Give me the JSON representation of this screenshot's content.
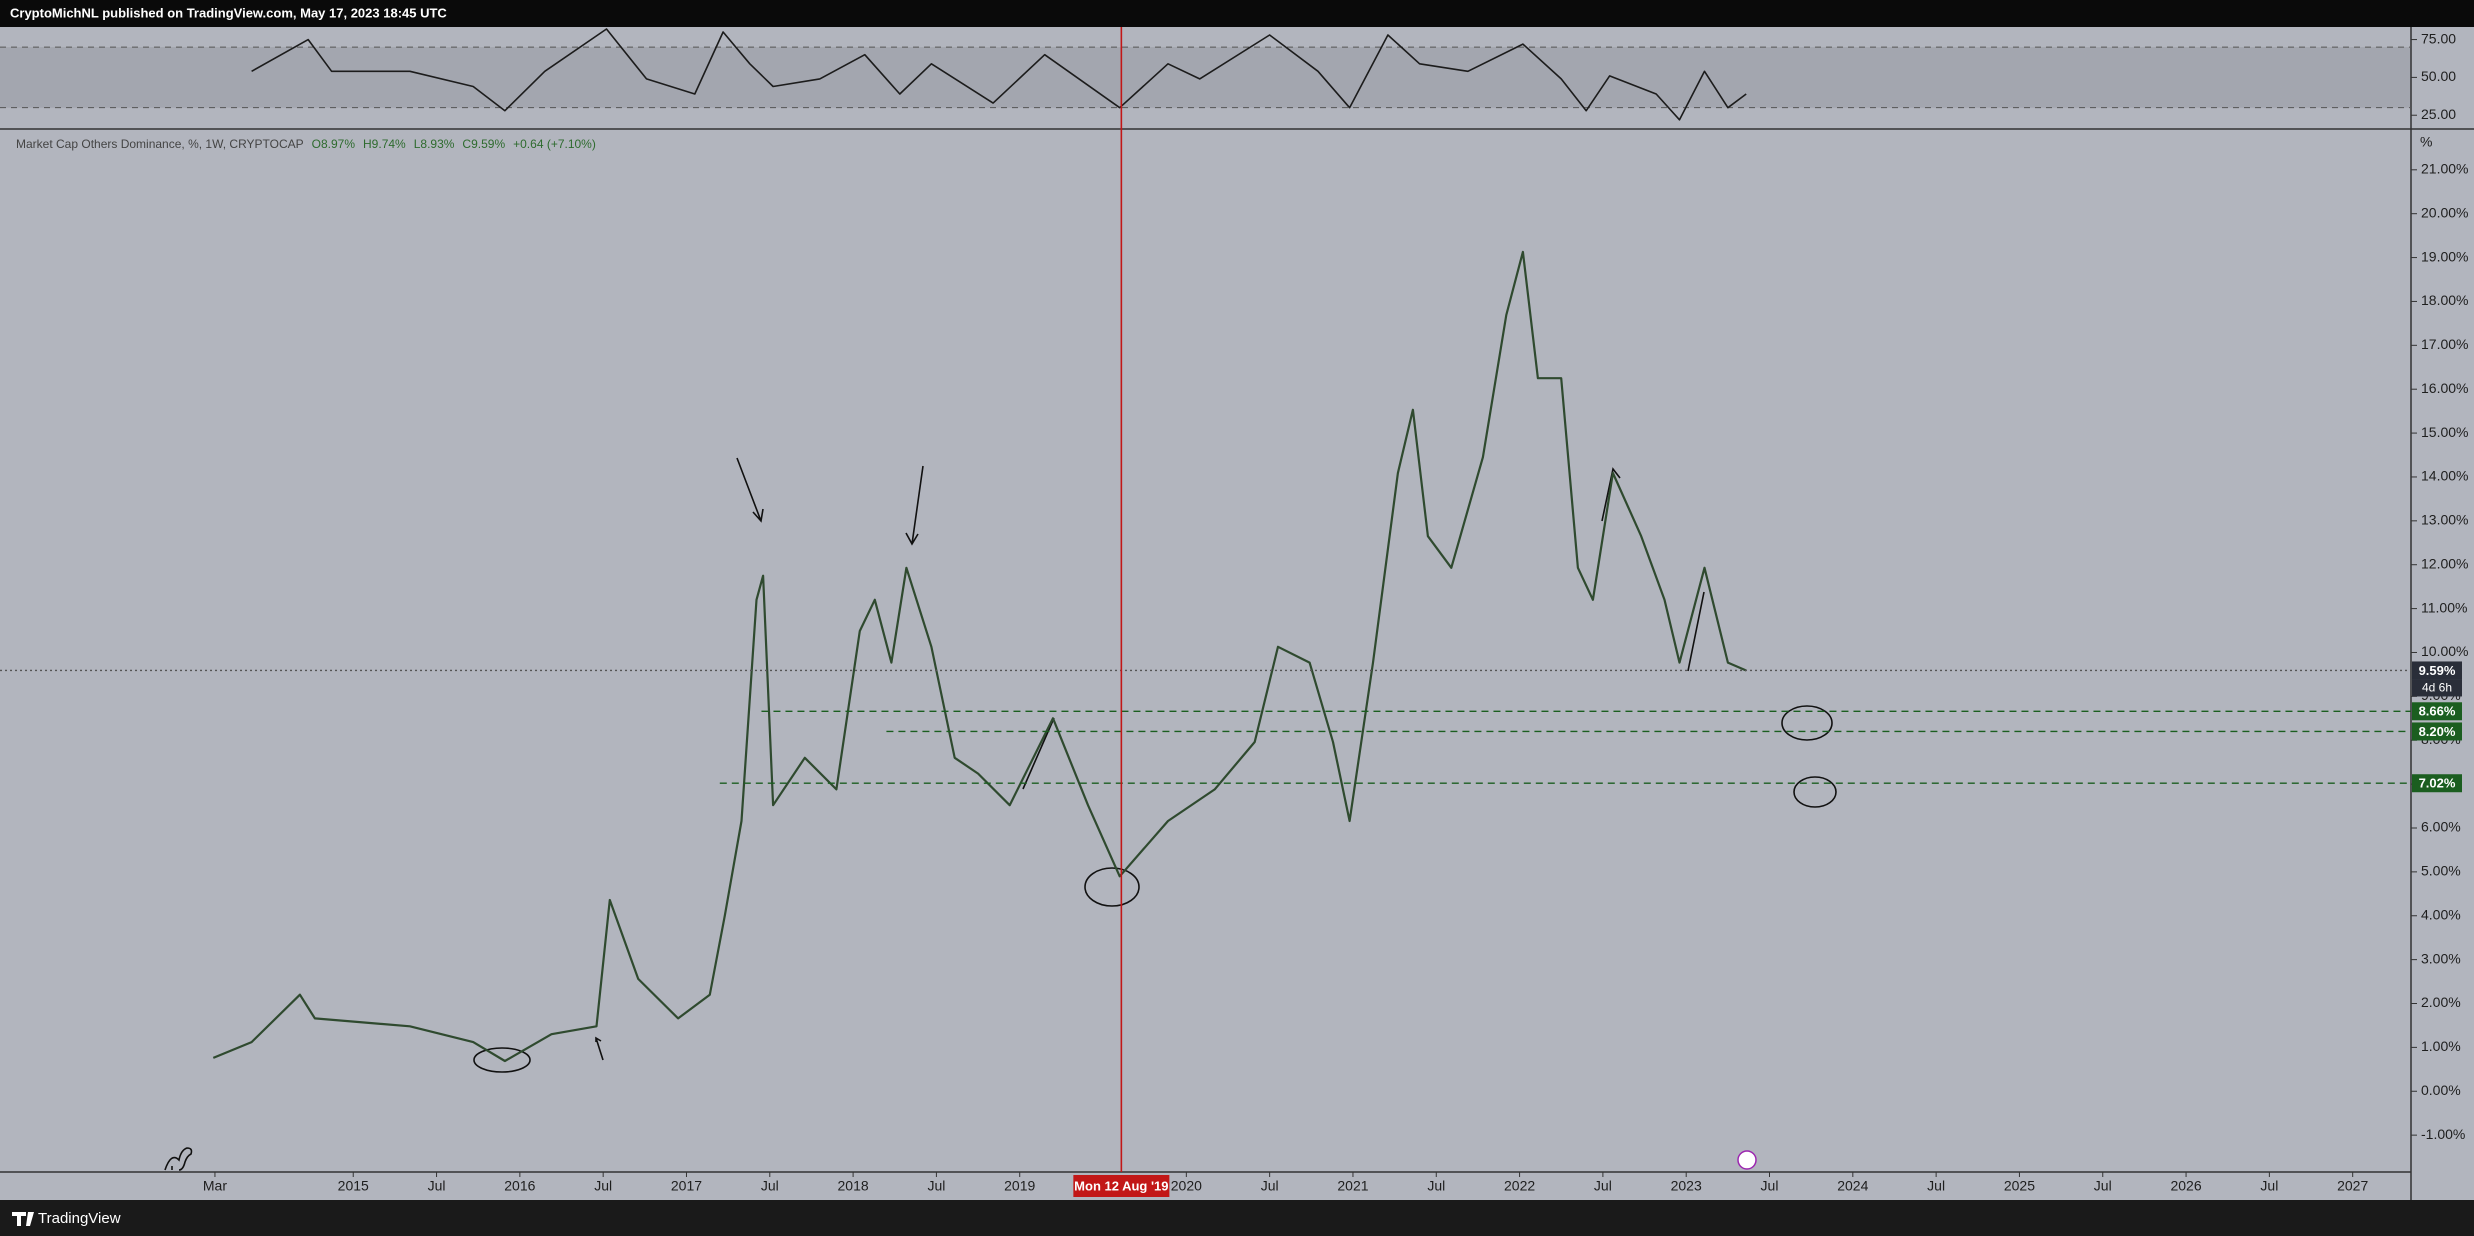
{
  "header": {
    "publisher": "CryptoMichNL published on TradingView.com, May 17, 2023 18:45 UTC"
  },
  "footer": {
    "brand": "TradingView"
  },
  "chart_data": [
    {
      "type": "line",
      "color": "#1c1c1c",
      "xlim": [
        2012.88,
        2027.35
      ],
      "ylim": [
        15.9,
        83.3
      ],
      "yticks": [
        {
          "value": 25,
          "label": "25.00"
        },
        {
          "value": 50,
          "label": "50.00"
        },
        {
          "value": 75,
          "label": "75.00"
        }
      ],
      "band": [
        30,
        70
      ],
      "x": [
        2014.39,
        2014.73,
        2014.87,
        2015.34,
        2015.72,
        2015.91,
        2016.15,
        2016.52,
        2016.76,
        2017.05,
        2017.22,
        2017.38,
        2017.52,
        2017.8,
        2018.07,
        2018.28,
        2018.47,
        2018.84,
        2019.15,
        2019.6,
        2019.89,
        2020.08,
        2020.5,
        2020.79,
        2020.98,
        2021.21,
        2021.4,
        2021.69,
        2022.02,
        2022.25,
        2022.4,
        2022.54,
        2022.82,
        2022.96,
        2023.11,
        2023.25,
        2023.36
      ],
      "values": [
        54,
        75,
        54,
        54,
        44,
        28,
        54,
        82,
        49,
        39,
        80,
        59,
        44,
        49,
        65,
        39,
        59,
        33,
        65,
        30,
        59,
        49,
        78,
        54,
        30,
        78,
        59,
        54,
        72,
        49,
        28,
        51,
        39,
        22,
        54,
        30,
        39
      ]
    },
    {
      "type": "line",
      "title": "Market Cap Others Dominance, %, 1W, CRYPTOCAP",
      "stats": [
        "O8.97%",
        "H9.74%",
        "L8.93%",
        "C9.59%",
        "+0.64 (+7.10%)"
      ],
      "color": "#2f4a2f",
      "unit": "%",
      "countdown": "4d 6h",
      "xlim": [
        2012.88,
        2027.35
      ],
      "ylim": [
        -1.84,
        21.93
      ],
      "xticks": [
        {
          "value": 2014.17,
          "label": "Mar"
        },
        2015,
        {
          "value": 2015.5,
          "label": "Jul"
        },
        2016,
        {
          "value": 2016.5,
          "label": "Jul"
        },
        2017,
        {
          "value": 2017.5,
          "label": "Jul"
        },
        2018,
        {
          "value": 2018.5,
          "label": "Jul"
        },
        2019,
        2020,
        {
          "value": 2020.5,
          "label": "Jul"
        },
        2021,
        {
          "value": 2021.5,
          "label": "Jul"
        },
        2022,
        {
          "value": 2022.5,
          "label": "Jul"
        },
        2023,
        {
          "value": 2023.5,
          "label": "Jul"
        },
        2024,
        {
          "value": 2024.5,
          "label": "Jul"
        },
        2025,
        {
          "value": 2025.5,
          "label": "Jul"
        },
        2026,
        {
          "value": 2026.5,
          "label": "Jul"
        },
        2027
      ],
      "yticks": [
        {
          "value": -1,
          "label": "-1.00%"
        },
        {
          "value": 0,
          "label": "0.00%"
        },
        {
          "value": 1,
          "label": "1.00%"
        },
        {
          "value": 2,
          "label": "2.00%"
        },
        {
          "value": 3,
          "label": "3.00%"
        },
        {
          "value": 4,
          "label": "4.00%"
        },
        {
          "value": 5,
          "label": "5.00%"
        },
        {
          "value": 6,
          "label": "6.00%"
        },
        {
          "value": 7,
          "label": "7.00%"
        },
        {
          "value": 8,
          "label": "8.00%"
        },
        {
          "value": 9,
          "label": "9.00%"
        },
        {
          "value": 10,
          "label": "10.00%"
        },
        {
          "value": 11,
          "label": "11.00%"
        },
        {
          "value": 12,
          "label": "12.00%"
        },
        {
          "value": 13,
          "label": "13.00%"
        },
        {
          "value": 14,
          "label": "14.00%"
        },
        {
          "value": 15,
          "label": "15.00%"
        },
        {
          "value": 16,
          "label": "16.00%"
        },
        {
          "value": 17,
          "label": "17.00%"
        },
        {
          "value": 18,
          "label": "18.00%"
        },
        {
          "value": 19,
          "label": "19.00%"
        },
        {
          "value": 20,
          "label": "20.00%"
        },
        {
          "value": 21,
          "label": "21.00%"
        }
      ],
      "x": [
        2014.16,
        2014.39,
        2014.68,
        2014.77,
        2015.34,
        2015.72,
        2015.91,
        2016.19,
        2016.46,
        2016.54,
        2016.71,
        2016.95,
        2017.14,
        2017.23,
        2017.33,
        2017.42,
        2017.46,
        2017.52,
        2017.71,
        2017.9,
        2018.04,
        2018.13,
        2018.23,
        2018.32,
        2018.47,
        2018.61,
        2018.75,
        2018.94,
        2019.2,
        2019.41,
        2019.6,
        2019.89,
        2020.17,
        2020.41,
        2020.55,
        2020.74,
        2020.88,
        2020.98,
        2021.12,
        2021.27,
        2021.36,
        2021.45,
        2021.59,
        2021.78,
        2021.92,
        2022.02,
        2022.11,
        2022.25,
        2022.35,
        2022.44,
        2022.56,
        2022.73,
        2022.87,
        2022.96,
        2023.11,
        2023.25,
        2023.36
      ],
      "values": [
        0.76,
        1.12,
        2.2,
        1.66,
        1.48,
        1.12,
        0.69,
        1.3,
        1.48,
        4.36,
        2.56,
        1.66,
        2.2,
        4.0,
        6.16,
        11.2,
        11.75,
        6.52,
        7.6,
        6.88,
        10.49,
        11.2,
        9.77,
        11.93,
        10.13,
        7.6,
        7.24,
        6.52,
        8.5,
        6.52,
        4.9,
        6.16,
        6.88,
        7.96,
        10.13,
        9.77,
        7.96,
        6.16,
        9.77,
        14.09,
        15.53,
        12.65,
        11.93,
        14.45,
        17.69,
        19.13,
        16.25,
        16.25,
        11.93,
        11.2,
        14.09,
        12.65,
        11.2,
        9.77,
        11.93,
        9.77,
        9.59
      ],
      "levels": [
        {
          "value": 9.59,
          "label": "9.59%",
          "from": 2012.88,
          "style": "dotted",
          "color": "#2a2e39"
        },
        {
          "value": 8.66,
          "label": "8.66%",
          "from": 2017.45,
          "style": "dashed",
          "color": "#1b5e20"
        },
        {
          "value": 8.2,
          "label": "8.20%",
          "from": 2018.2,
          "style": "dashed",
          "color": "#1b5e20"
        },
        {
          "value": 7.02,
          "label": "7.02%",
          "from": 2017.2,
          "style": "dashed",
          "color": "#1b5e20"
        }
      ],
      "marker": {
        "value": 2019.61,
        "label": "Mon 12 Aug '19",
        "color": "#c21717"
      }
    }
  ]
}
